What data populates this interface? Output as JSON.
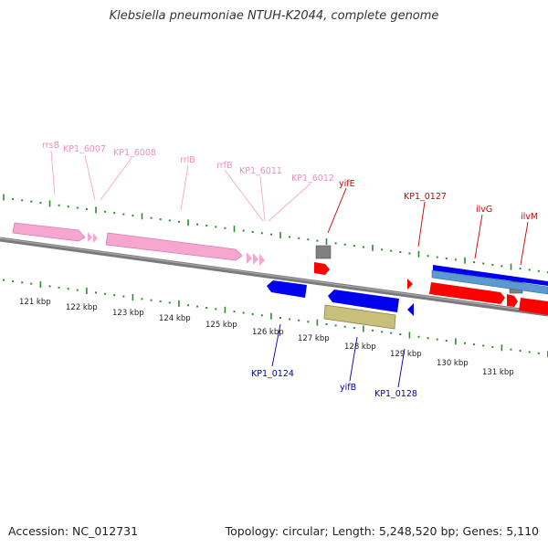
{
  "title": "Klebsiella pneumoniae NTUH-K2044, complete genome",
  "footer": {
    "accession": "Accession: NC_012731",
    "topology": "Topology: circular; Length: 5,248,520 bp; Genes: 5,110"
  },
  "colors": {
    "rna": "#f7a6cf",
    "rna_label": "#f08cc0",
    "forward": "#ff0000",
    "forward_label": "#cc0000",
    "reverse": "#0000ee",
    "reverse_label": "#0000aa",
    "other": "#c8c07a",
    "gap": "#808080",
    "cds_blue": "#5a9ad0",
    "axis": "#888888",
    "tick": "#2e8b2e"
  },
  "scale": {
    "unit": "kbp",
    "labels": [
      "121 kbp",
      "122 kbp",
      "123 kbp",
      "124 kbp",
      "125 kbp",
      "126 kbp",
      "127 kbp",
      "128 kbp",
      "129 kbp",
      "130 kbp",
      "131 kbp"
    ]
  },
  "gene_labels": {
    "rna": [
      "rrsB",
      "KP1_6007",
      "KP1_6008",
      "rrlB",
      "rrfB",
      "KP1_6011",
      "KP1_6012"
    ],
    "forward": [
      "yifE",
      "KP1_0127",
      "ilvG",
      "ilvM"
    ],
    "reverse": [
      "KP1_0124",
      "yifB",
      "KP1_0128"
    ]
  }
}
